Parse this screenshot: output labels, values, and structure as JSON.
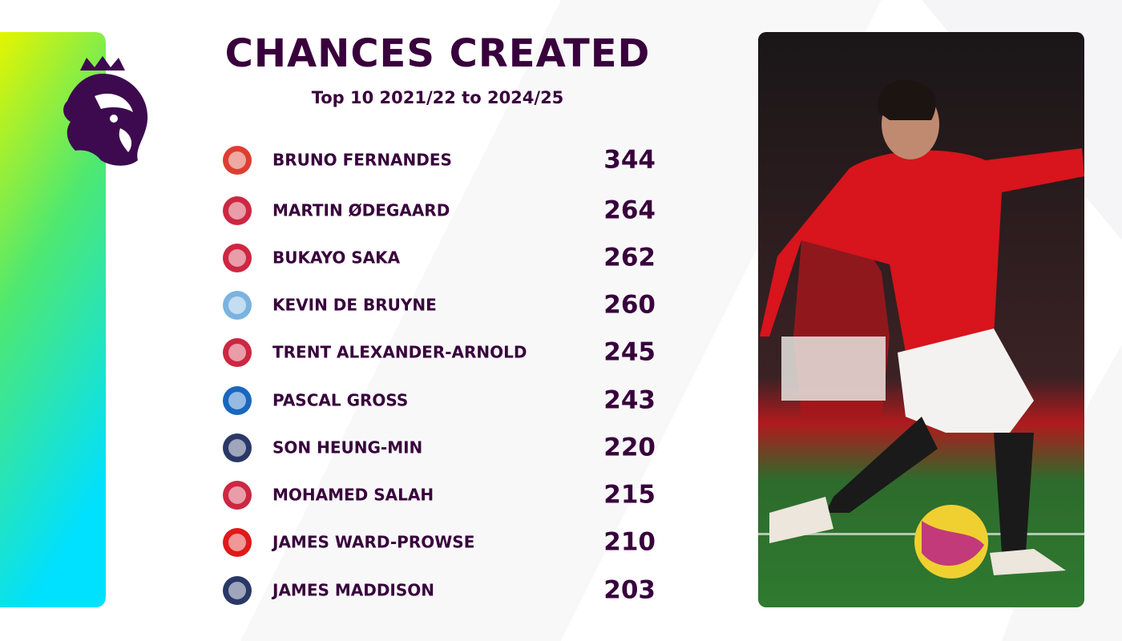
{
  "header": {
    "title": "CHANCES CREATED",
    "subtitle": "Top 10 2021/22 to 2024/25"
  },
  "rows": [
    {
      "player": "BRUNO FERNANDES",
      "value": "344",
      "badge": "#da291c"
    },
    {
      "player": "MARTIN ØDEGAARD",
      "value": "264",
      "badge": "#c8102e"
    },
    {
      "player": "BUKAYO SAKA",
      "value": "262",
      "badge": "#c8102e"
    },
    {
      "player": "KEVIN DE BRUYNE",
      "value": "260",
      "badge": "#6cabdd"
    },
    {
      "player": "TRENT ALEXANDER-ARNOLD",
      "value": "245",
      "badge": "#c8102e"
    },
    {
      "player": "PASCAL GROSS",
      "value": "243",
      "badge": "#0057b8"
    },
    {
      "player": "SON HEUNG-MIN",
      "value": "220",
      "badge": "#132257"
    },
    {
      "player": "MOHAMED SALAH",
      "value": "215",
      "badge": "#c8102e"
    },
    {
      "player": "JAMES WARD-PROWSE",
      "value": "210",
      "badge": "#dd0000"
    },
    {
      "player": "JAMES MADDISON",
      "value": "203",
      "badge": "#132257"
    }
  ]
}
